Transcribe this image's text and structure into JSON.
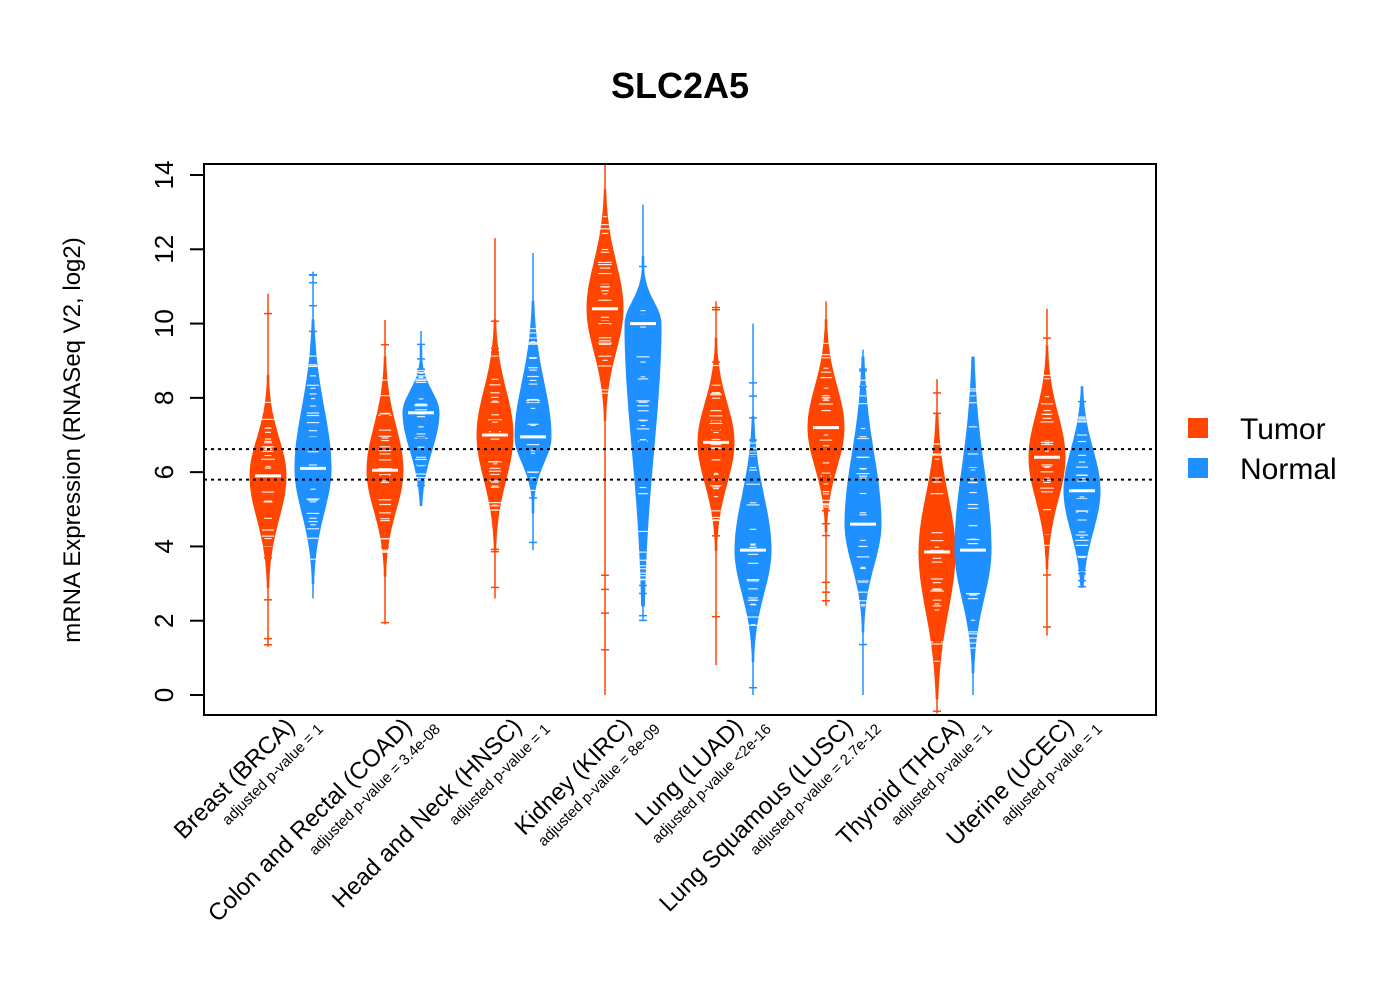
{
  "chart_data": {
    "type": "violin",
    "title": "SLC2A5",
    "ylabel": "mRNA Expression (RNASeq V2, log2)",
    "xlabel": "",
    "ylim": [
      -0.6,
      14.3
    ],
    "yticks": [
      0,
      2,
      4,
      6,
      8,
      10,
      12,
      14
    ],
    "grid": false,
    "legend_position": "right",
    "reference_lines": [
      6.62,
      5.8
    ],
    "colors": {
      "Tumor": "#ff4500",
      "Normal": "#1e90ff"
    },
    "categories": [
      {
        "label": "Breast (BRCA)",
        "pvalue": "adjusted p-value = 1"
      },
      {
        "label": "Colon and Rectal (COAD)",
        "pvalue": "adjusted p-value = 3.4e-08"
      },
      {
        "label": "Head and Neck (HNSC)",
        "pvalue": "adjusted p-value = 1"
      },
      {
        "label": "Kidney (KIRC)",
        "pvalue": "adjusted p-value = 8e-09"
      },
      {
        "label": "Lung (LUAD)",
        "pvalue": "adjusted p-value <2e-16"
      },
      {
        "label": "Lung Squamous (LUSC)",
        "pvalue": "adjusted p-value = 2.7e-12"
      },
      {
        "label": "Thyroid (THCA)",
        "pvalue": "adjusted p-value = 1"
      },
      {
        "label": "Uterine (UCEC)",
        "pvalue": "adjusted p-value = 1"
      }
    ],
    "series": [
      {
        "name": "Tumor",
        "medians": [
          5.9,
          6.05,
          7.0,
          10.4,
          6.8,
          7.2,
          3.85,
          6.4
        ],
        "min": [
          1.3,
          1.9,
          2.6,
          0.0,
          0.8,
          2.4,
          -0.5,
          1.6
        ],
        "max": [
          10.8,
          10.1,
          12.3,
          14.3,
          10.6,
          10.6,
          8.5,
          10.4
        ],
        "core_low": [
          3.5,
          3.8,
          4.5,
          8.0,
          4.5,
          5.0,
          0.5,
          4.0
        ],
        "core_high": [
          8.0,
          8.5,
          9.5,
          13.0,
          9.0,
          9.5,
          7.0,
          8.8
        ]
      },
      {
        "name": "Normal",
        "medians": [
          6.1,
          7.6,
          6.95,
          10.0,
          3.9,
          4.6,
          3.9,
          5.5
        ],
        "min": [
          2.6,
          5.1,
          3.9,
          2.0,
          0.0,
          0.0,
          0.0,
          2.9
        ],
        "max": [
          11.4,
          9.8,
          11.9,
          13.2,
          10.0,
          9.3,
          9.1,
          8.3
        ],
        "core_low": [
          3.6,
          5.5,
          5.5,
          3.0,
          1.5,
          2.3,
          1.2,
          3.2
        ],
        "core_high": [
          9.5,
          8.8,
          10.0,
          11.2,
          6.9,
          8.5,
          8.5,
          7.8
        ]
      }
    ]
  }
}
